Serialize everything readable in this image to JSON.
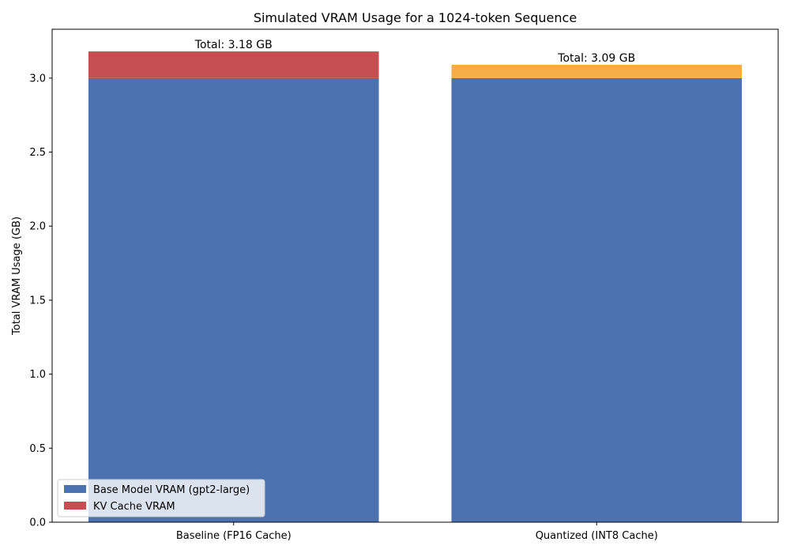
{
  "chart_data": {
    "type": "bar",
    "stacked": true,
    "title": "Simulated VRAM Usage for a 1024-token Sequence",
    "xlabel": "",
    "ylabel": "Total VRAM Usage (GB)",
    "ylim": [
      0,
      3.33
    ],
    "yticks": [
      "0.0",
      "0.5",
      "1.0",
      "1.5",
      "2.0",
      "2.5",
      "3.0"
    ],
    "grid": false,
    "legend_position": "lower-left",
    "categories": [
      "Baseline (FP16 Cache)",
      "Quantized (INT8 Cache)"
    ],
    "series": [
      {
        "name": "Base Model VRAM (gpt2-large)",
        "values": [
          3.0,
          3.0
        ],
        "colors": [
          "#4c72b0",
          "#4c72b0"
        ]
      },
      {
        "name": "KV Cache VRAM",
        "values": [
          0.18,
          0.09
        ],
        "colors": [
          "#c44e52",
          "#f5ad45"
        ]
      }
    ],
    "data_labels": [
      "Total: 3.18 GB",
      "Total: 3.09 GB"
    ],
    "legend_entries": [
      {
        "label": "Base Model VRAM (gpt2-large)",
        "color": "#4c72b0"
      },
      {
        "label": "KV Cache VRAM",
        "color": "#c44e52"
      }
    ]
  }
}
